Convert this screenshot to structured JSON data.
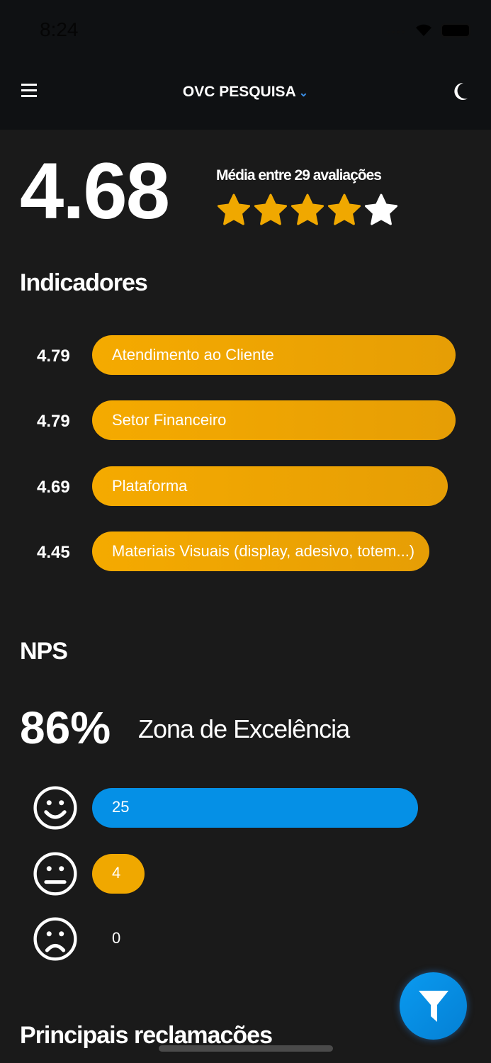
{
  "status_bar": {
    "time": "8:24"
  },
  "header": {
    "title": "OVC PESQUISA",
    "menu_icon": "hamburger-icon",
    "theme_icon": "moon-icon",
    "dropdown_icon": "chevron-down-icon"
  },
  "summary": {
    "average": "4.68",
    "caption": "Média entre 29 avaliações",
    "stars_filled": 4,
    "stars_total": 5
  },
  "indicators": {
    "title": "Indicadores",
    "items": [
      {
        "value": "4.79",
        "label": "Atendimento ao Cliente"
      },
      {
        "value": "4.79",
        "label": "Setor Financeiro"
      },
      {
        "value": "4.69",
        "label": "Plataforma"
      },
      {
        "value": "4.45",
        "label": "Materiais Visuais (display, adesivo, totem...)"
      }
    ]
  },
  "nps": {
    "title": "NPS",
    "percent": "86%",
    "zone": "Zona de Excelência",
    "rows": [
      {
        "icon": "smile-icon",
        "count": "25",
        "color": "#0590e6"
      },
      {
        "icon": "neutral-face-icon",
        "count": "4",
        "color": "#f0a800"
      },
      {
        "icon": "sad-face-icon",
        "count": "0",
        "color": "#f0a800"
      }
    ]
  },
  "complaints": {
    "title": "Principais reclamacões"
  },
  "fab": {
    "icon": "filter-icon"
  },
  "colors": {
    "accent": "#f0a800",
    "blue": "#0590e6",
    "background": "#1a1a1a",
    "header": "#0f1113"
  }
}
